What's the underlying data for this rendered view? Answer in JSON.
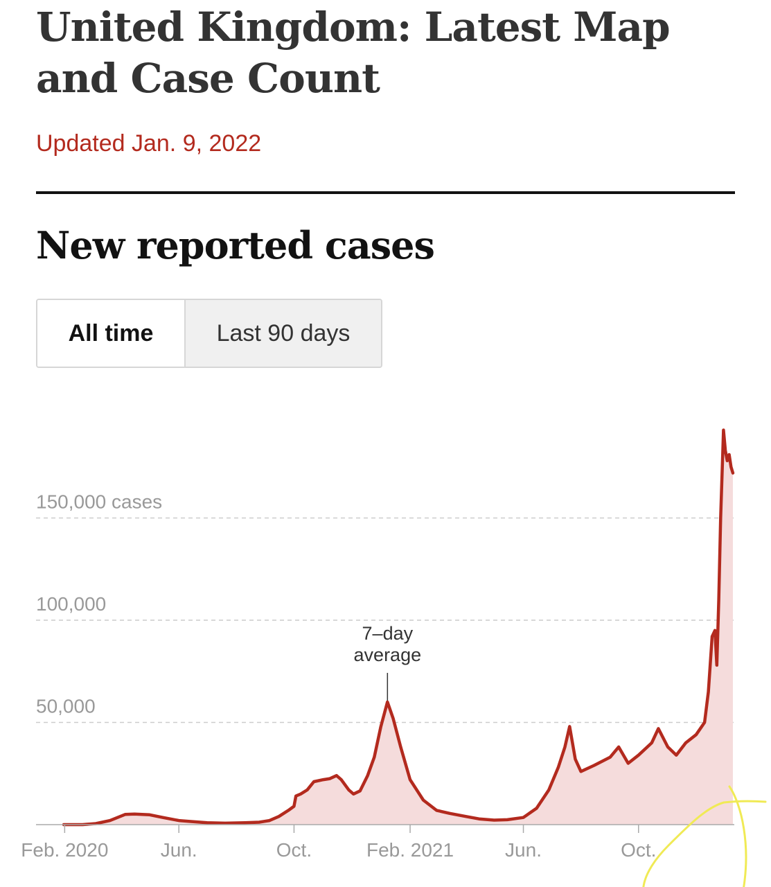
{
  "header": {
    "title": "United Kingdom: Latest Map and Case Count",
    "updated": "Updated Jan. 9, 2022",
    "section_title": "New reported cases"
  },
  "toggle": {
    "options": [
      "All time",
      "Last 90 days"
    ],
    "selected": "All time"
  },
  "colors": {
    "line": "#b32a1e",
    "area": "#f5dcdc",
    "highlight": "#f0ea55",
    "grid": "#cccccc"
  },
  "chart_data": {
    "type": "area",
    "title": "",
    "xlabel": "",
    "ylabel": "",
    "ylim": [
      0,
      200000
    ],
    "xlim": [
      "2020-01-31",
      "2022-01-09"
    ],
    "grid": true,
    "y_ticks": [
      {
        "value": 150000,
        "label": "150,000 cases"
      },
      {
        "value": 100000,
        "label": "100,000"
      },
      {
        "value": 50000,
        "label": "50,000"
      }
    ],
    "x_ticks": [
      {
        "date": "2020-02-01",
        "label": "Feb. 2020"
      },
      {
        "date": "2020-06-01",
        "label": "Jun."
      },
      {
        "date": "2020-10-01",
        "label": "Oct."
      },
      {
        "date": "2021-02-01",
        "label": "Feb. 2021"
      },
      {
        "date": "2021-06-01",
        "label": "Jun."
      },
      {
        "date": "2021-10-01",
        "label": "Oct."
      }
    ],
    "annotation": {
      "lines": [
        "7–day",
        "average"
      ],
      "date": "2021-01-08",
      "value": 60000
    },
    "series": [
      {
        "points": [
          [
            "2020-01-31",
            0
          ],
          [
            "2020-02-20",
            0
          ],
          [
            "2020-03-05",
            500
          ],
          [
            "2020-03-20",
            2000
          ],
          [
            "2020-04-05",
            5000
          ],
          [
            "2020-04-15",
            5200
          ],
          [
            "2020-05-01",
            4800
          ],
          [
            "2020-05-15",
            3500
          ],
          [
            "2020-06-01",
            2000
          ],
          [
            "2020-06-15",
            1500
          ],
          [
            "2020-07-01",
            900
          ],
          [
            "2020-07-20",
            700
          ],
          [
            "2020-08-10",
            900
          ],
          [
            "2020-08-25",
            1200
          ],
          [
            "2020-09-05",
            2000
          ],
          [
            "2020-09-15",
            4000
          ],
          [
            "2020-09-25",
            7000
          ],
          [
            "2020-10-01",
            9000
          ],
          [
            "2020-10-03",
            14000
          ],
          [
            "2020-10-08",
            15000
          ],
          [
            "2020-10-15",
            17000
          ],
          [
            "2020-10-22",
            21000
          ],
          [
            "2020-11-01",
            22000
          ],
          [
            "2020-11-08",
            22500
          ],
          [
            "2020-11-15",
            24000
          ],
          [
            "2020-11-20",
            22000
          ],
          [
            "2020-11-28",
            17000
          ],
          [
            "2020-12-03",
            15000
          ],
          [
            "2020-12-10",
            16500
          ],
          [
            "2020-12-18",
            24000
          ],
          [
            "2020-12-25",
            33000
          ],
          [
            "2021-01-01",
            48000
          ],
          [
            "2021-01-08",
            60000
          ],
          [
            "2021-01-14",
            52000
          ],
          [
            "2021-01-22",
            38000
          ],
          [
            "2021-02-01",
            22000
          ],
          [
            "2021-02-15",
            12000
          ],
          [
            "2021-03-01",
            7000
          ],
          [
            "2021-03-15",
            5500
          ],
          [
            "2021-04-01",
            4000
          ],
          [
            "2021-04-15",
            2800
          ],
          [
            "2021-05-01",
            2200
          ],
          [
            "2021-05-15",
            2400
          ],
          [
            "2021-06-01",
            3500
          ],
          [
            "2021-06-15",
            8000
          ],
          [
            "2021-06-28",
            17000
          ],
          [
            "2021-07-08",
            28000
          ],
          [
            "2021-07-15",
            38000
          ],
          [
            "2021-07-20",
            48000
          ],
          [
            "2021-07-26",
            32000
          ],
          [
            "2021-08-01",
            26000
          ],
          [
            "2021-08-15",
            29000
          ],
          [
            "2021-09-01",
            33000
          ],
          [
            "2021-09-10",
            38000
          ],
          [
            "2021-09-20",
            30000
          ],
          [
            "2021-10-01",
            34000
          ],
          [
            "2021-10-15",
            40000
          ],
          [
            "2021-10-22",
            47000
          ],
          [
            "2021-11-01",
            38000
          ],
          [
            "2021-11-10",
            34000
          ],
          [
            "2021-11-20",
            40000
          ],
          [
            "2021-12-01",
            44000
          ],
          [
            "2021-12-10",
            50000
          ],
          [
            "2021-12-14",
            65000
          ],
          [
            "2021-12-18",
            92000
          ],
          [
            "2021-12-21",
            95000
          ],
          [
            "2021-12-23",
            78000
          ],
          [
            "2021-12-25",
            110000
          ],
          [
            "2021-12-27",
            150000
          ],
          [
            "2021-12-29",
            178000
          ],
          [
            "2021-12-30",
            193000
          ],
          [
            "2022-01-01",
            183000
          ],
          [
            "2022-01-03",
            178000
          ],
          [
            "2022-01-05",
            181000
          ],
          [
            "2022-01-07",
            175000
          ],
          [
            "2022-01-09",
            172000
          ]
        ]
      }
    ]
  }
}
